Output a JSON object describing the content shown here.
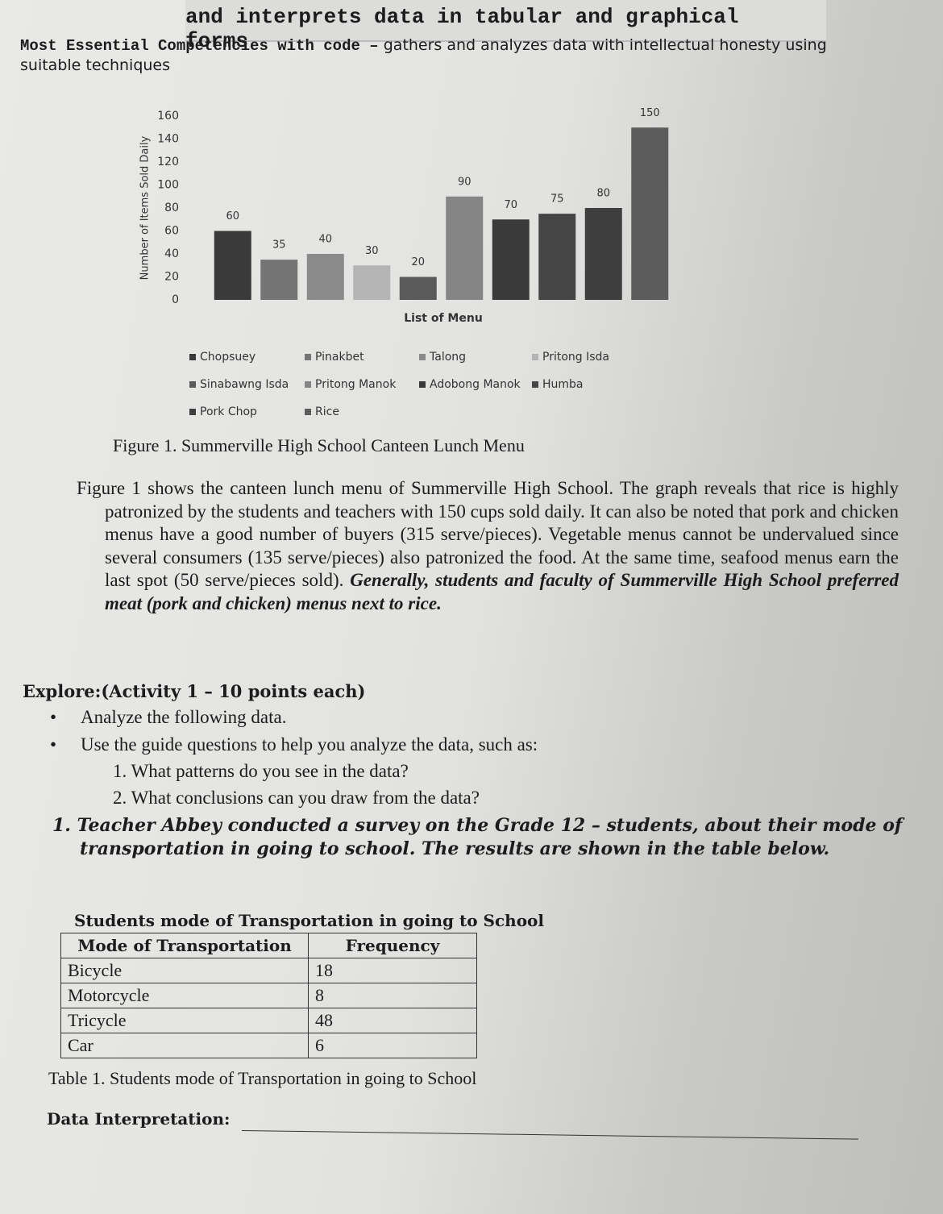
{
  "header": {
    "title": "and interprets data in tabular and graphical forms",
    "competency_label": "Most Essential Competencies with code –",
    "competency_text": "gathers and analyzes data with intellectual honesty using suitable techniques"
  },
  "chart_data": {
    "type": "bar",
    "categories": [
      "Chopsuey",
      "Pinakbet",
      "Talong",
      "Pritong Isda",
      "Sinabawng Isda",
      "Pritong Manok",
      "Adobong Manok",
      "Humba",
      "Pork Chop",
      "Rice"
    ],
    "values": [
      60,
      35,
      40,
      30,
      20,
      90,
      70,
      75,
      80,
      150
    ],
    "colors": [
      "#3a3a3a",
      "#747474",
      "#8a8a8a",
      "#b4b4b4",
      "#5a5a5a",
      "#858585",
      "#3a3a3a",
      "#454545",
      "#3e3e3e",
      "#5c5c5c"
    ],
    "ylim": [
      0,
      160
    ],
    "yticks": [
      0,
      20,
      40,
      60,
      80,
      100,
      120,
      140,
      160
    ],
    "y_label": "Number of Items Sold Daily",
    "x_label": "List of Menu",
    "legend": "bottom"
  },
  "figure_caption": "Figure 1. Summerville High School Canteen Lunch Menu",
  "paragraph": {
    "text": "Figure 1 shows the canteen lunch menu of Summerville High School. The graph reveals that rice is highly patronized by the students and teachers with 150 cups sold daily. It can also be noted that pork and chicken menus have a good number of buyers (315 serve/pieces). Vegetable menus cannot be undervalued since several consumers (135 serve/pieces) also patronized the food. At the same time, seafood menus earn the last spot (50 serve/pieces sold).",
    "emphasis": "Generally, students and faculty of Summerville High School preferred meat (pork and chicken) menus next to rice."
  },
  "explore": {
    "heading": "Explore:(Activity 1 – 10 points each)",
    "bullets": [
      "Analyze the following data.",
      "Use the guide questions to help you analyze the data, such as:"
    ],
    "questions": [
      "1. What patterns do you see in the data?",
      "2. What conclusions can you draw from the data?"
    ]
  },
  "activity": {
    "item": "1. Teacher Abbey conducted a survey on the Grade 12 – students, about their mode of transportation in going to school. The results are shown in the table below."
  },
  "table": {
    "title": "Students mode of Transportation in going to School",
    "columns": [
      "Mode of Transportation",
      "Frequency"
    ],
    "rows": [
      [
        "Bicycle",
        18
      ],
      [
        "Motorcycle",
        8
      ],
      [
        "Tricycle",
        48
      ],
      [
        "Car",
        6
      ]
    ],
    "caption": "Table 1. Students mode of Transportation in going to School"
  },
  "data_interpretation": {
    "label": "Data Interpretation:"
  }
}
